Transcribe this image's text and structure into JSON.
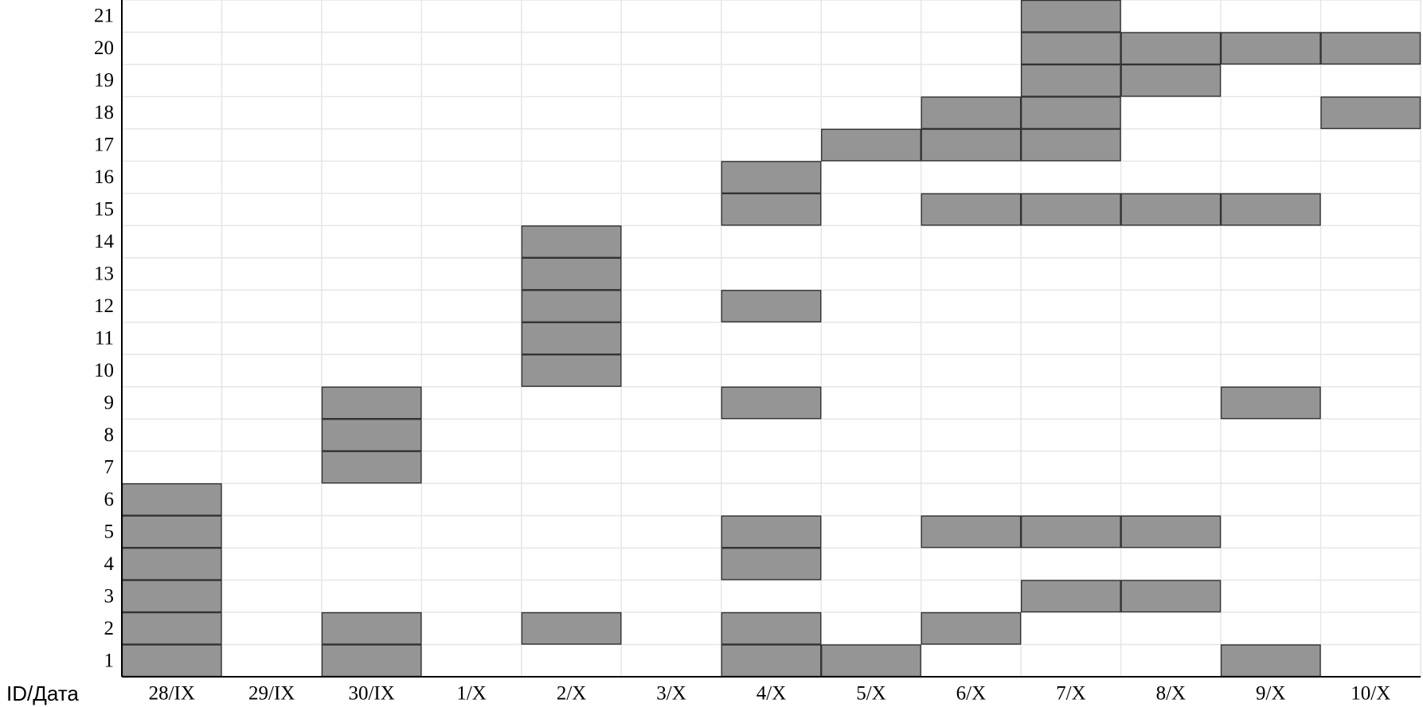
{
  "chart_data": {
    "type": "heatmap",
    "corner_label": "ID/Дата",
    "x_categories": [
      "28/IX",
      "29/IX",
      "30/IX",
      "1/X",
      "2/X",
      "3/X",
      "4/X",
      "5/X",
      "6/X",
      "7/X",
      "8/X",
      "9/X",
      "10/X"
    ],
    "y_categories": [
      1,
      2,
      3,
      4,
      5,
      6,
      7,
      8,
      9,
      10,
      11,
      12,
      13,
      14,
      15,
      16,
      17,
      18,
      19,
      20,
      21
    ],
    "filled_cells": [
      [
        "28/IX",
        1
      ],
      [
        "28/IX",
        2
      ],
      [
        "28/IX",
        3
      ],
      [
        "28/IX",
        4
      ],
      [
        "28/IX",
        5
      ],
      [
        "28/IX",
        6
      ],
      [
        "30/IX",
        1
      ],
      [
        "30/IX",
        2
      ],
      [
        "30/IX",
        7
      ],
      [
        "30/IX",
        8
      ],
      [
        "30/IX",
        9
      ],
      [
        "2/X",
        2
      ],
      [
        "2/X",
        10
      ],
      [
        "2/X",
        11
      ],
      [
        "2/X",
        12
      ],
      [
        "2/X",
        13
      ],
      [
        "2/X",
        14
      ],
      [
        "4/X",
        1
      ],
      [
        "4/X",
        2
      ],
      [
        "4/X",
        4
      ],
      [
        "4/X",
        5
      ],
      [
        "4/X",
        9
      ],
      [
        "4/X",
        12
      ],
      [
        "4/X",
        15
      ],
      [
        "4/X",
        16
      ],
      [
        "5/X",
        1
      ],
      [
        "5/X",
        17
      ],
      [
        "6/X",
        2
      ],
      [
        "6/X",
        5
      ],
      [
        "6/X",
        15
      ],
      [
        "6/X",
        17
      ],
      [
        "6/X",
        18
      ],
      [
        "7/X",
        3
      ],
      [
        "7/X",
        5
      ],
      [
        "7/X",
        15
      ],
      [
        "7/X",
        17
      ],
      [
        "7/X",
        18
      ],
      [
        "7/X",
        19
      ],
      [
        "7/X",
        20
      ],
      [
        "7/X",
        21
      ],
      [
        "8/X",
        3
      ],
      [
        "8/X",
        5
      ],
      [
        "8/X",
        15
      ],
      [
        "8/X",
        19
      ],
      [
        "8/X",
        20
      ],
      [
        "9/X",
        1
      ],
      [
        "9/X",
        9
      ],
      [
        "9/X",
        15
      ],
      [
        "9/X",
        20
      ],
      [
        "10/X",
        18
      ],
      [
        "10/X",
        20
      ]
    ],
    "fill_color": "#959595",
    "cell_border_color": "#333333",
    "grid_color": "#e6e6e6",
    "axis_color": "#000000",
    "grid": true
  }
}
